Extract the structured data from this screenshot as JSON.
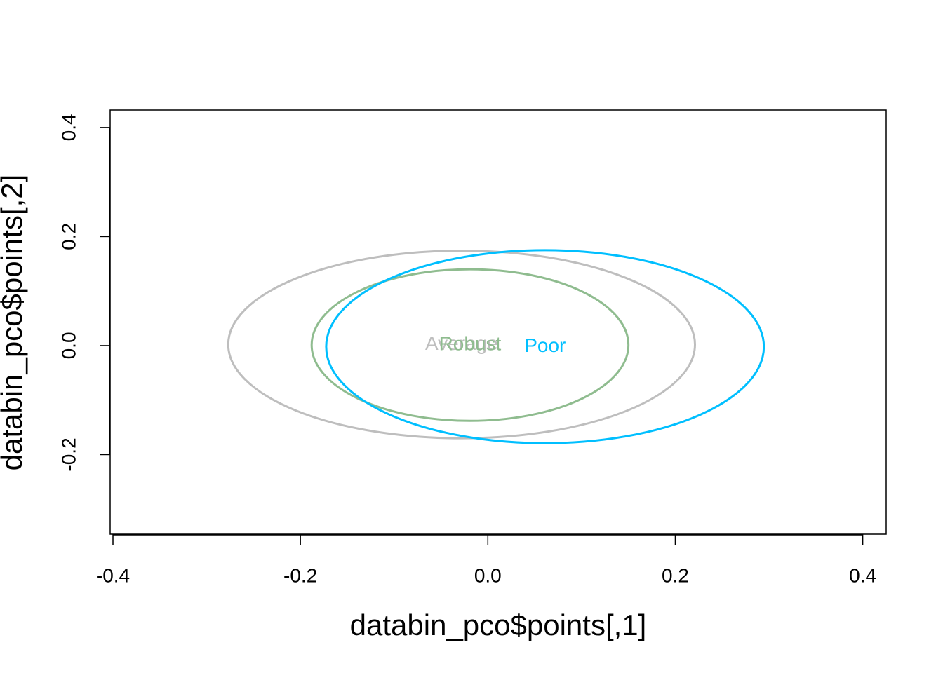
{
  "chart_data": {
    "type": "ellipse",
    "x_label": "databin_pco$points[,1]",
    "y_label": "databin_pco$points[,2]",
    "xlim": [
      -0.403,
      0.425
    ],
    "ylim": [
      -0.346,
      0.432
    ],
    "xticks": [
      -0.4,
      -0.2,
      {
        "value": 0,
        "label": "0.0"
      },
      0.2,
      0.4
    ],
    "yticks": [
      -0.2,
      {
        "value": 0,
        "label": "0.0"
      },
      0.2,
      0.4
    ],
    "series": [
      {
        "name": "Average",
        "color": "#bebebe",
        "x": -0.028,
        "y": 0.002,
        "rx": 0.249,
        "ry": 0.172
      },
      {
        "name": "Robust",
        "color": "#8fbc8f",
        "x": -0.019,
        "y": 0.001,
        "rx": 0.169,
        "ry": 0.139
      },
      {
        "name": "Poor",
        "color": "#00bfff",
        "x": 0.061,
        "y": -0.002,
        "rx": 0.2335,
        "ry": 0.177
      }
    ]
  }
}
